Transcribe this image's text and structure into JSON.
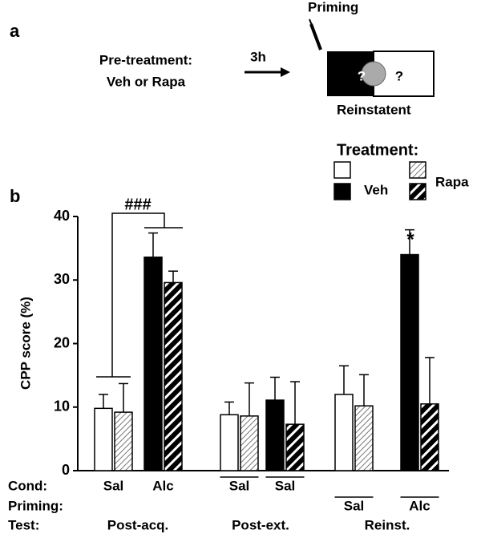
{
  "panel_labels": [
    "a",
    "b"
  ],
  "schematic": {
    "priming": "Priming",
    "pretreatment": "Pre-treatment:",
    "drugs": "Veh or Rapa",
    "delay": "3h",
    "outcome": "Reinstatent",
    "question_marks": [
      "?",
      "?"
    ]
  },
  "chart_data": {
    "type": "bar",
    "ylabel": "CPP score (%)",
    "ylim": [
      0,
      40
    ],
    "yticks": [
      0,
      10,
      20,
      30,
      40
    ],
    "legend": {
      "title": "Treatment:",
      "entries": [
        "Veh",
        "Rapa"
      ]
    },
    "pair_fills": [
      "#ffffff",
      "#000000"
    ],
    "row_labels": [
      "Cond:",
      "Priming:",
      "Test:"
    ],
    "groups": [
      {
        "name": "Post-acq.",
        "pairs": [
          {
            "label": "Sal",
            "values": [
              9.8,
              9.2
            ],
            "errors": [
              2.2,
              4.5
            ]
          },
          {
            "label": "Alc",
            "values": [
              33.6,
              29.6
            ],
            "errors": [
              3.8,
              1.8
            ]
          }
        ]
      },
      {
        "name": "Post-ext.",
        "pairs": [
          {
            "label": "Sal",
            "values": [
              8.8,
              8.6
            ],
            "errors": [
              2.0,
              5.2
            ]
          },
          {
            "label": "Sal",
            "values": [
              11.1,
              7.3
            ],
            "errors": [
              3.6,
              6.7
            ]
          }
        ]
      },
      {
        "name": "Reinst.",
        "pairs": [
          {
            "label": "Sal",
            "values": [
              12.0,
              10.2
            ],
            "errors": [
              4.5,
              4.9
            ]
          },
          {
            "label": "Alc",
            "values": [
              34.0,
              10.5
            ],
            "errors": [
              3.9,
              7.3
            ]
          }
        ]
      }
    ],
    "annotations": [
      "###",
      "*"
    ]
  }
}
